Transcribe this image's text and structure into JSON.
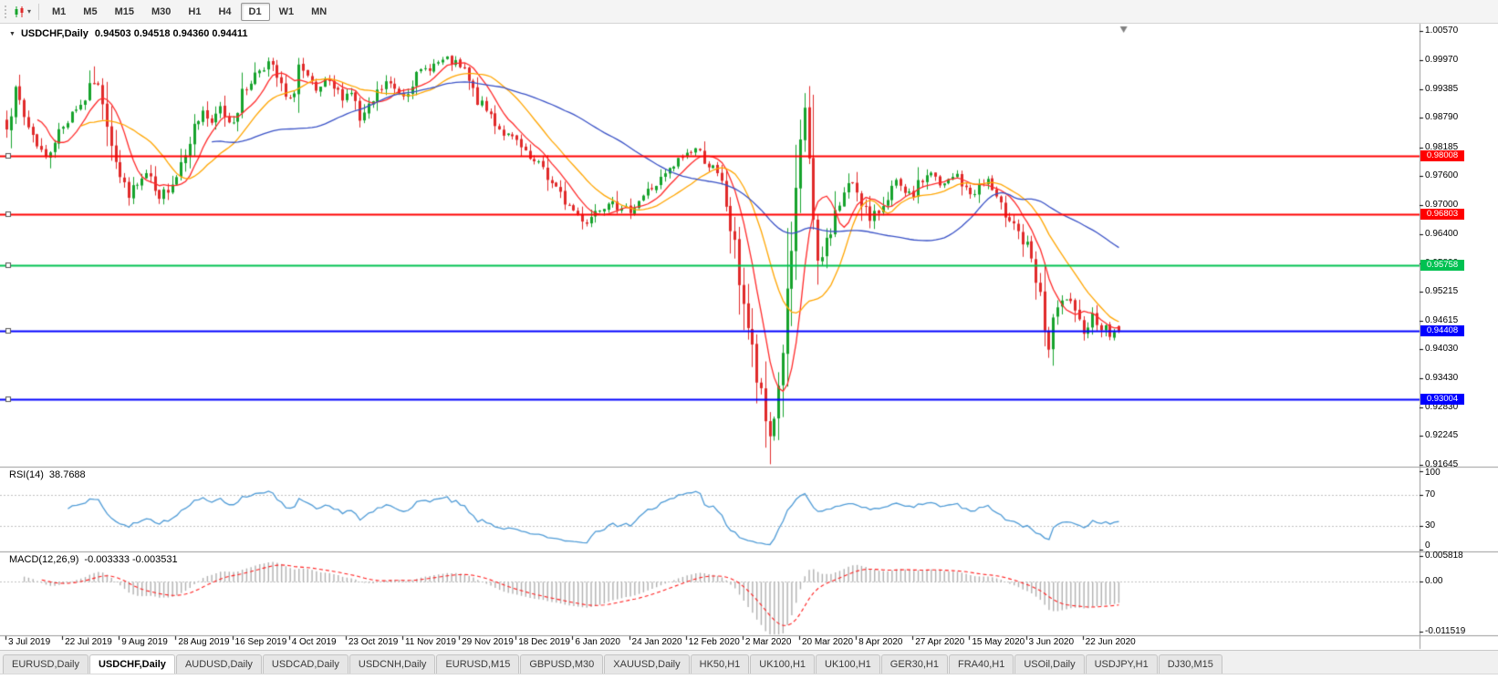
{
  "icons": {
    "collapse": "▼",
    "dropdown_caret": "▾"
  },
  "toolbar": {
    "timeframes": [
      "M1",
      "M5",
      "M15",
      "M30",
      "H1",
      "H4",
      "D1",
      "W1",
      "MN"
    ],
    "active": "D1"
  },
  "colors": {
    "background": "#ffffff",
    "bull": "#16a32c",
    "bear": "#e02a2a",
    "panel_border": "#9a9a9a",
    "axis_text": "#000000",
    "grid_dash": "#c0c0c0",
    "shift_marker": "#808080"
  },
  "chart_data": {
    "type": "candlestick",
    "symbol": "USDCHF",
    "timeframe": "Daily",
    "title": "USDCHF,Daily",
    "ohlc_label": "0.94503 0.94518 0.94360 0.94411",
    "last_candle": {
      "open": 0.94503,
      "high": 0.94518,
      "low": 0.9436,
      "close": 0.94411
    },
    "ylim": [
      0.9161,
      1.0071
    ],
    "y_ticks": [
      "1.00570",
      "0.99970",
      "0.99385",
      "0.98790",
      "0.98185",
      "0.97600",
      "0.97000",
      "0.96400",
      "0.95800",
      "0.95215",
      "0.94615",
      "0.94030",
      "0.93430",
      "0.92830",
      "0.92245",
      "0.91645"
    ],
    "x_labels": [
      "3 Jul 2019",
      "22 Jul 2019",
      "9 Aug 2019",
      "28 Aug 2019",
      "16 Sep 2019",
      "4 Oct 2019",
      "23 Oct 2019",
      "11 Nov 2019",
      "29 Nov 2019",
      "18 Dec 2019",
      "6 Jan 2020",
      "24 Jan 2020",
      "12 Feb 2020",
      "2 Mar 2020",
      "20 Mar 2020",
      "8 Apr 2020",
      "27 Apr 2020",
      "15 May 2020",
      "3 Jun 2020",
      "22 Jun 2020"
    ],
    "candle_count": 256,
    "candles_per_x_label": 13,
    "price_path": [
      [
        0,
        0.987
      ],
      [
        2,
        0.9935
      ],
      [
        4,
        0.988
      ],
      [
        6,
        0.9845
      ],
      [
        9,
        0.9795
      ],
      [
        11,
        0.9838
      ],
      [
        13,
        0.986
      ],
      [
        15,
        0.9895
      ],
      [
        17,
        0.9905
      ],
      [
        20,
        0.9952
      ],
      [
        22,
        0.992
      ],
      [
        23,
        0.988
      ],
      [
        25,
        0.98
      ],
      [
        26,
        0.9755
      ],
      [
        28,
        0.9722
      ],
      [
        30,
        0.974
      ],
      [
        32,
        0.9762
      ],
      [
        35,
        0.9706
      ],
      [
        37,
        0.9738
      ],
      [
        39,
        0.9762
      ],
      [
        41,
        0.982
      ],
      [
        43,
        0.9858
      ],
      [
        45,
        0.9895
      ],
      [
        47,
        0.9862
      ],
      [
        49,
        0.99
      ],
      [
        51,
        0.9872
      ],
      [
        52,
        0.988
      ],
      [
        54,
        0.9925
      ],
      [
        56,
        0.9958
      ],
      [
        58,
        0.998
      ],
      [
        60,
        0.9992
      ],
      [
        62,
        0.996
      ],
      [
        64,
        0.9918
      ],
      [
        65,
        0.9908
      ],
      [
        66,
        0.995
      ],
      [
        67,
        0.9988
      ],
      [
        69,
        0.9955
      ],
      [
        71,
        0.993
      ],
      [
        73,
        0.9952
      ],
      [
        75,
        0.9938
      ],
      [
        77,
        0.9922
      ],
      [
        79,
        0.9935
      ],
      [
        81,
        0.9872
      ],
      [
        83,
        0.9895
      ],
      [
        85,
        0.9928
      ],
      [
        87,
        0.9952
      ],
      [
        89,
        0.9938
      ],
      [
        91,
        0.9928
      ],
      [
        93,
        0.9955
      ],
      [
        95,
        0.9972
      ],
      [
        97,
        0.9985
      ],
      [
        99,
        0.9992
      ],
      [
        101,
        0.9998
      ],
      [
        103,
        0.9988
      ],
      [
        105,
        0.9972
      ],
      [
        107,
        0.993
      ],
      [
        109,
        0.9902
      ],
      [
        111,
        0.9885
      ],
      [
        113,
        0.9858
      ],
      [
        115,
        0.984
      ],
      [
        117,
        0.9828
      ],
      [
        119,
        0.98
      ],
      [
        121,
        0.9785
      ],
      [
        123,
        0.9778
      ],
      [
        125,
        0.9742
      ],
      [
        127,
        0.9718
      ],
      [
        129,
        0.9698
      ],
      [
        131,
        0.968
      ],
      [
        133,
        0.9665
      ],
      [
        135,
        0.9688
      ],
      [
        137,
        0.9702
      ],
      [
        139,
        0.9716
      ],
      [
        141,
        0.9685
      ],
      [
        143,
        0.9692
      ],
      [
        145,
        0.971
      ],
      [
        147,
        0.9728
      ],
      [
        149,
        0.9742
      ],
      [
        151,
        0.976
      ],
      [
        153,
        0.9778
      ],
      [
        155,
        0.98
      ],
      [
        157,
        0.9812
      ],
      [
        158,
        0.9816
      ],
      [
        160,
        0.9795
      ],
      [
        162,
        0.9772
      ],
      [
        164,
        0.9738
      ],
      [
        165,
        0.97
      ],
      [
        166,
        0.9655
      ],
      [
        167,
        0.96
      ],
      [
        168,
        0.955
      ],
      [
        169,
        0.9505
      ],
      [
        170,
        0.9448
      ],
      [
        171,
        0.939
      ],
      [
        172,
        0.934
      ],
      [
        173,
        0.9295
      ],
      [
        174,
        0.9252
      ],
      [
        175,
        0.9225
      ],
      [
        176,
        0.927
      ],
      [
        177,
        0.9325
      ],
      [
        178,
        0.941
      ],
      [
        179,
        0.95
      ],
      [
        180,
        0.96
      ],
      [
        181,
        0.97
      ],
      [
        182,
        0.981
      ],
      [
        183,
        0.99
      ],
      [
        184,
        0.98
      ],
      [
        185,
        0.9655
      ],
      [
        186,
        0.9565
      ],
      [
        187,
        0.959
      ],
      [
        188,
        0.9625
      ],
      [
        190,
        0.9682
      ],
      [
        192,
        0.9722
      ],
      [
        194,
        0.9748
      ],
      [
        195,
        0.9732
      ],
      [
        197,
        0.969
      ],
      [
        198,
        0.9662
      ],
      [
        200,
        0.9688
      ],
      [
        202,
        0.9722
      ],
      [
        204,
        0.9745
      ],
      [
        206,
        0.9718
      ],
      [
        208,
        0.9722
      ],
      [
        210,
        0.9752
      ],
      [
        212,
        0.9768
      ],
      [
        214,
        0.9735
      ],
      [
        216,
        0.9748
      ],
      [
        218,
        0.9762
      ],
      [
        220,
        0.9728
      ],
      [
        221,
        0.9722
      ],
      [
        223,
        0.9738
      ],
      [
        225,
        0.9752
      ],
      [
        227,
        0.9705
      ],
      [
        229,
        0.9682
      ],
      [
        231,
        0.9668
      ],
      [
        233,
        0.9622
      ],
      [
        234,
        0.9608
      ],
      [
        235,
        0.9572
      ],
      [
        236,
        0.9538
      ],
      [
        237,
        0.9498
      ],
      [
        238,
        0.9455
      ],
      [
        239,
        0.9402
      ],
      [
        240,
        0.9445
      ],
      [
        241,
        0.9482
      ],
      [
        243,
        0.9508
      ],
      [
        245,
        0.9468
      ],
      [
        247,
        0.9442
      ],
      [
        249,
        0.9472
      ],
      [
        251,
        0.9452
      ],
      [
        253,
        0.9432
      ],
      [
        255,
        0.9441
      ]
    ],
    "spikes": [
      {
        "i": 20,
        "high": 0.9985
      },
      {
        "i": 175,
        "low": 0.9165
      },
      {
        "i": 183,
        "high": 0.993
      },
      {
        "i": 239,
        "low": 0.9385
      }
    ],
    "hlines": [
      {
        "price": 0.98008,
        "label": "0.98008",
        "color": "#ff0000"
      },
      {
        "price": 0.96803,
        "label": "0.96803",
        "color": "#ff0000"
      },
      {
        "price": 0.95758,
        "label": "0.95758",
        "color": "#00c151"
      },
      {
        "price": 0.94408,
        "label": "0.94408",
        "color": "#0000ff"
      },
      {
        "price": 0.93004,
        "label": "0.93004",
        "color": "#0000ff"
      }
    ],
    "moving_averages": [
      {
        "period": 8,
        "color": "#ff2a2a"
      },
      {
        "period": 18,
        "color": "#ffa500"
      },
      {
        "period": 48,
        "color": "#3951c6"
      }
    ],
    "rsi": {
      "label": "RSI(14)",
      "value_text": "38.7688",
      "period": 14,
      "levels": [
        70,
        30
      ],
      "ylim": [
        0,
        100
      ],
      "y_ticks": [
        "100",
        "70",
        "30",
        "0"
      ],
      "color": "#4f9bd6"
    },
    "macd": {
      "label": "MACD(12,26,9)",
      "values_text": "-0.003333 -0.003531",
      "fast": 12,
      "slow": 26,
      "signal_period": 9,
      "ylim": [
        -0.0115,
        0.0058
      ],
      "y_ticks": [
        "0.005818",
        "0.00",
        "-0.011519"
      ],
      "hist_color": "#b0b0b0",
      "signal_color": "#ff2020"
    }
  },
  "tabs": {
    "items": [
      "EURUSD,Daily",
      "USDCHF,Daily",
      "AUDUSD,Daily",
      "USDCAD,Daily",
      "USDCNH,Daily",
      "EURUSD,M15",
      "GBPUSD,M30",
      "XAUUSD,Daily",
      "HK50,H1",
      "UK100,H1",
      "UK100,H1",
      "GER30,H1",
      "FRA40,H1",
      "USOil,Daily",
      "USDJPY,H1",
      "DJ30,M15"
    ],
    "active_index": 1
  }
}
